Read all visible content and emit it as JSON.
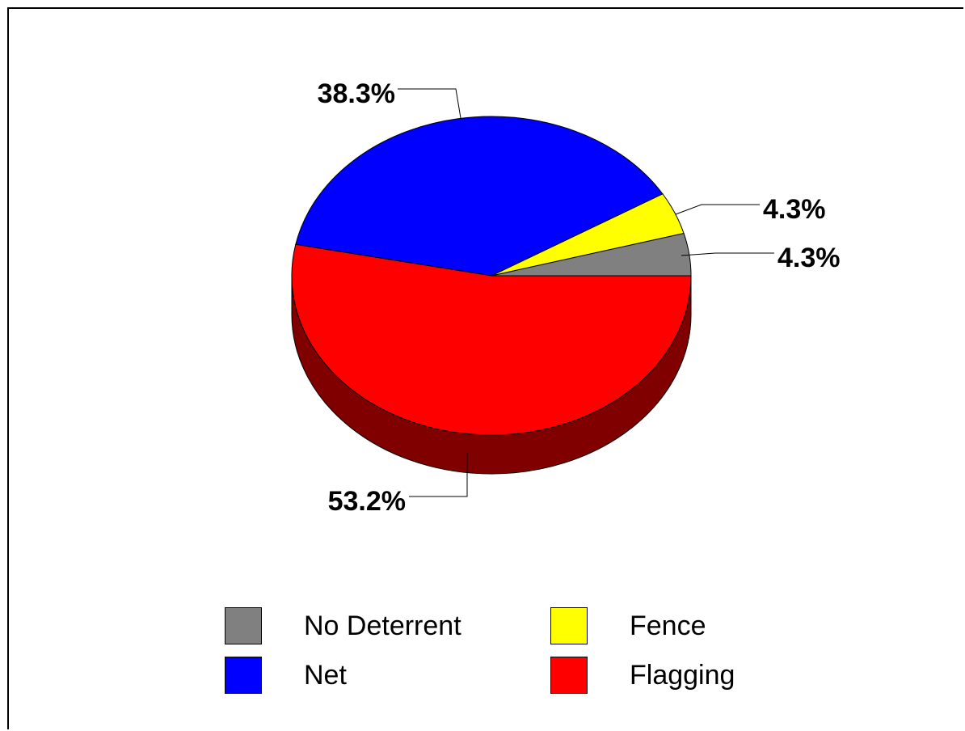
{
  "chart_data": {
    "type": "pie",
    "slices": [
      {
        "name": "No Deterrent",
        "value": 4.3,
        "label": "4.3%",
        "color": "#808080",
        "side": "#404040"
      },
      {
        "name": "Fence",
        "value": 4.3,
        "label": "4.3%",
        "color": "#ffff00",
        "side": "#808000"
      },
      {
        "name": "Net",
        "value": 38.3,
        "label": "38.3%",
        "color": "#0000ff",
        "side": "#000080"
      },
      {
        "name": "Flagging",
        "value": 53.2,
        "label": "53.2%",
        "color": "#ff0000",
        "side": "#800000"
      }
    ],
    "legend": {
      "placement": "bottom",
      "items": [
        {
          "label": "No Deterrent",
          "color": "#808080"
        },
        {
          "label": "Fence",
          "color": "#ffff00"
        },
        {
          "label": "Net",
          "color": "#0000ff"
        },
        {
          "label": "Flagging",
          "color": "#ff0000"
        }
      ]
    },
    "style": "3d",
    "start_angle": "3 o'clock",
    "direction": "counterclockwise"
  }
}
